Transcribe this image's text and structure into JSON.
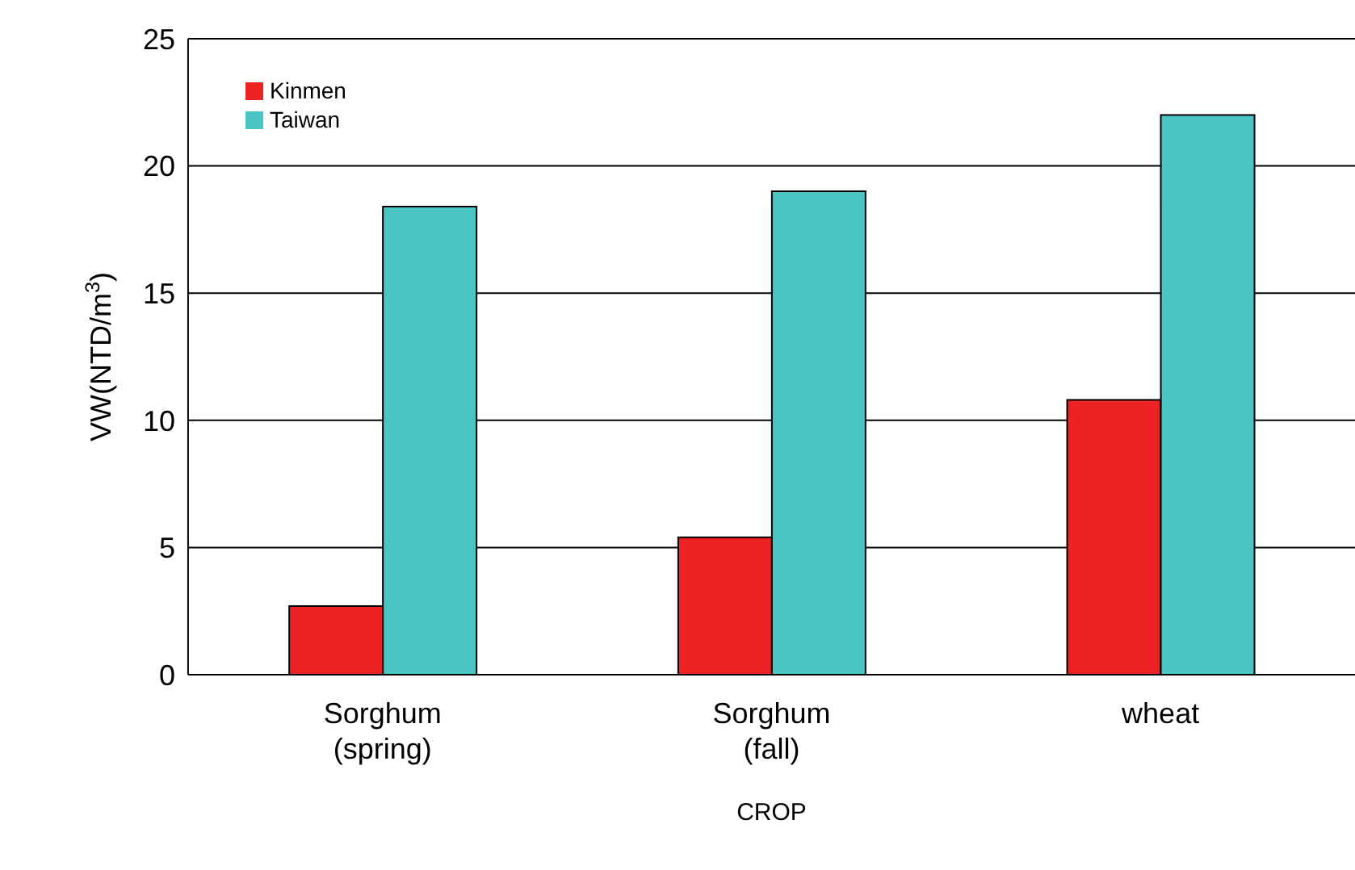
{
  "chart_data": {
    "type": "bar",
    "xlabel": "CROP",
    "ylabel": "VW(NTD/m$^{3}$)",
    "categories": [
      "Sorghum (spring)",
      "Sorghum (fall)",
      "wheat"
    ],
    "series": [
      {
        "name": "Kinmen",
        "color": "#ed2224",
        "values": [
          2.7,
          5.4,
          10.8
        ]
      },
      {
        "name": "Taiwan",
        "color": "#4bc4c4",
        "values": [
          18.4,
          19.0,
          22.0
        ]
      }
    ],
    "ylim": [
      0,
      25
    ],
    "yticks": [
      0,
      5,
      10,
      15,
      20,
      25
    ],
    "grid": "y",
    "legend": "top left"
  }
}
